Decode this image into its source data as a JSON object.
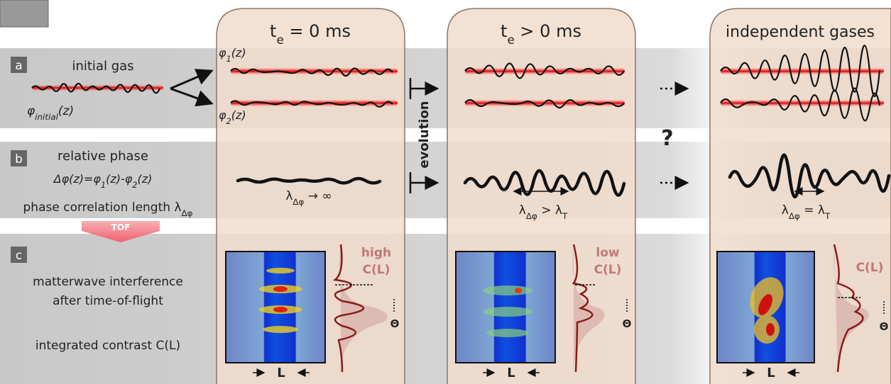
{
  "column_titles": [
    [
      "t",
      "e",
      " = 0 ms"
    ],
    [
      "t",
      "e",
      " > 0 ms"
    ],
    [
      "independent gases"
    ]
  ],
  "row_a": {
    "tag": "a",
    "title": "initial gas",
    "phi_initial": [
      "φ",
      "initial",
      "(z)"
    ],
    "phi_1": [
      "φ",
      "1",
      "(z)"
    ],
    "phi_2": [
      "φ",
      "2",
      "(z)"
    ]
  },
  "evolution": "evolution",
  "question": "?",
  "row_b": {
    "tag": "b",
    "title": "relative phase",
    "formula": [
      "Δφ(z)=φ",
      "1",
      "(z)-φ",
      "2",
      "(z)"
    ],
    "length_label": [
      "phase correlation length λ",
      "Δφ"
    ],
    "lengths": [
      [
        "λ",
        "Δφ",
        " → ∞"
      ],
      [
        "λ",
        "Δφ",
        " > λ",
        "T"
      ],
      [
        "λ",
        "Δφ",
        " = λ",
        "T"
      ]
    ]
  },
  "tof": "TOF",
  "row_c": {
    "tag": "c",
    "lines": [
      "matterwave interference",
      "after time-of-flight"
    ],
    "contrast": "integrated contrast C(L)",
    "contrast_labels": [
      [
        "high",
        "C(L)"
      ],
      [
        "low",
        "C(L)"
      ],
      [
        "C(L)"
      ]
    ],
    "L": [
      "L",
      "L",
      "L"
    ],
    "theta": [
      "Θ",
      "Θ",
      "Θ"
    ]
  }
}
